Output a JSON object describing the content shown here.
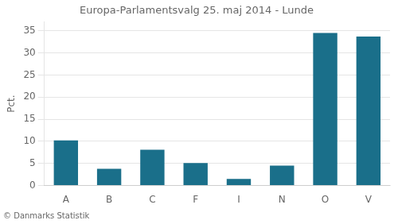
{
  "chart_data": {
    "type": "bar",
    "title": "Europa-Parlamentsvalg 25. maj 2014 - Lunde",
    "ylabel": "Pct.",
    "footer": "© Danmarks Statistik",
    "categories": [
      "A",
      "B",
      "C",
      "F",
      "I",
      "N",
      "O",
      "V"
    ],
    "values": [
      10.2,
      3.8,
      8.1,
      5.1,
      1.5,
      4.5,
      34.5,
      33.7
    ],
    "color": "#1a6f8a",
    "ylim": [
      0,
      37
    ],
    "yticks": [
      0,
      5,
      10,
      15,
      20,
      25,
      30,
      35
    ],
    "grid": true
  }
}
